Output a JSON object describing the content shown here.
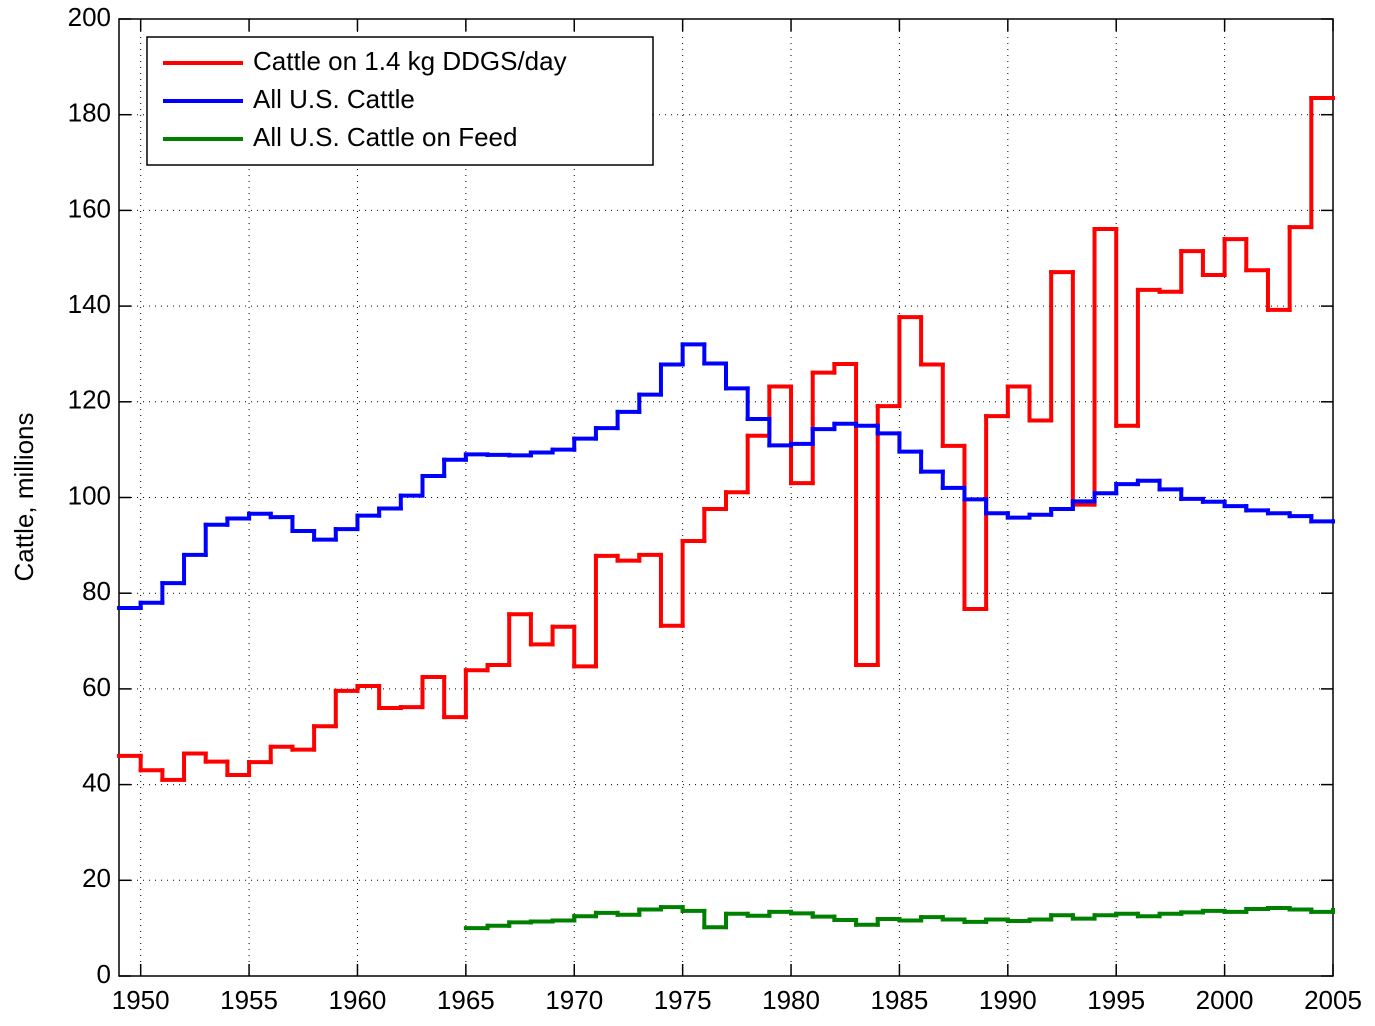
{
  "chart_data": {
    "type": "stairs",
    "ylabel": "Cattle, millions",
    "x": [
      1949,
      1950,
      1951,
      1952,
      1953,
      1954,
      1955,
      1956,
      1957,
      1958,
      1959,
      1960,
      1961,
      1962,
      1963,
      1964,
      1965,
      1966,
      1967,
      1968,
      1969,
      1970,
      1971,
      1972,
      1973,
      1974,
      1975,
      1976,
      1977,
      1978,
      1979,
      1980,
      1981,
      1982,
      1983,
      1984,
      1985,
      1986,
      1987,
      1988,
      1989,
      1990,
      1991,
      1992,
      1993,
      1994,
      1995,
      1996,
      1997,
      1998,
      1999,
      2000,
      2001,
      2002,
      2003,
      2004,
      2005
    ],
    "series": [
      {
        "name": "Cattle on 1.4 kg DDGS/day",
        "color": "#ff0000",
        "values": [
          46,
          43,
          41,
          46.5,
          44.8,
          42,
          44.7,
          47.9,
          47.3,
          52.2,
          59.6,
          60.6,
          56,
          56.2,
          62.5,
          54.1,
          63.9,
          65,
          75.6,
          69.3,
          73,
          64.7,
          87.8,
          86.8,
          88,
          73.2,
          90.9,
          97.6,
          101.1,
          112.9,
          123.2,
          103,
          126.1,
          127.9,
          65,
          119.1,
          137.7,
          127.8,
          110.8,
          76.7,
          117,
          123.2,
          116.1,
          147.1,
          98.5,
          156.1,
          115,
          143.4,
          143,
          151.5,
          146.5,
          154,
          147.5,
          139.2,
          156.5,
          183.5,
          183.5
        ]
      },
      {
        "name": "All U.S. Cattle",
        "color": "#0000ff",
        "values": [
          76.9,
          78,
          82.1,
          88,
          94.3,
          95.6,
          96.6,
          95.9,
          93,
          91.2,
          93.4,
          96.2,
          97.7,
          100.4,
          104.5,
          107.9,
          109,
          108.9,
          108.8,
          109.4,
          110,
          112.3,
          114.5,
          117.9,
          121.5,
          127.8,
          132,
          128,
          122.8,
          116.4,
          110.9,
          111.2,
          114.3,
          115.4,
          115,
          113.4,
          109.6,
          105.4,
          102,
          99.6,
          96.7,
          95.8,
          96.4,
          97.6,
          99.2,
          100.9,
          102.8,
          103.5,
          101.7,
          99.7,
          99.1,
          98.2,
          97.3,
          96.7,
          96.1,
          95,
          95
        ]
      },
      {
        "name": "All U.S. Cattle on Feed",
        "color": "#008000",
        "values": [
          null,
          null,
          null,
          null,
          null,
          null,
          null,
          null,
          null,
          null,
          null,
          null,
          null,
          null,
          null,
          null,
          10,
          10.5,
          11.2,
          11.4,
          11.6,
          12.5,
          13.2,
          12.8,
          13.9,
          14.4,
          13.6,
          10.2,
          13,
          12.6,
          13.4,
          13.1,
          12.4,
          11.7,
          10.7,
          11.9,
          11.6,
          12.3,
          11.8,
          11.3,
          11.8,
          11.5,
          11.8,
          12.7,
          12,
          12.7,
          13,
          12.5,
          13,
          13.3,
          13.6,
          13.4,
          14,
          14.2,
          13.9,
          13.4,
          13.8
        ]
      }
    ],
    "xlim": [
      1949,
      2005
    ],
    "xticks": [
      1950,
      1955,
      1960,
      1965,
      1970,
      1975,
      1980,
      1985,
      1990,
      1995,
      2000,
      2005
    ],
    "ylim": [
      0,
      200
    ],
    "yticks": [
      0,
      20,
      40,
      60,
      80,
      100,
      120,
      140,
      160,
      180,
      200
    ],
    "grid": true,
    "legend": "upper left"
  }
}
